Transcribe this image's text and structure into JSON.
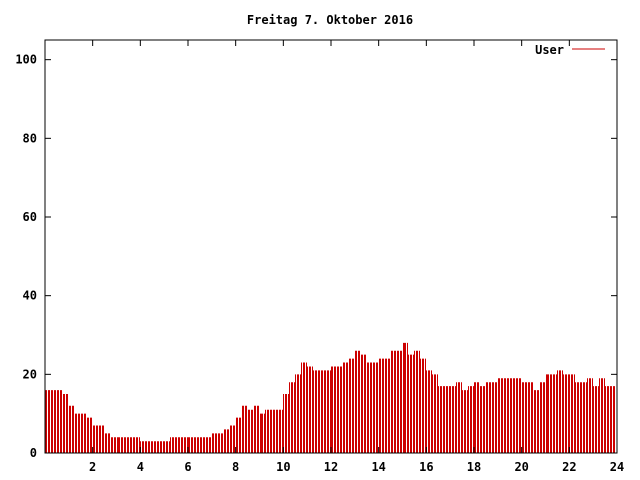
{
  "chart_data": {
    "type": "bar",
    "title": "Freitag 7. Oktober 2016",
    "xlabel": "",
    "ylabel": "",
    "xlim": [
      0,
      24
    ],
    "ylim": [
      0,
      105
    ],
    "x_ticks": [
      2,
      4,
      6,
      8,
      10,
      12,
      14,
      16,
      18,
      20,
      22,
      24
    ],
    "y_ticks": [
      0,
      20,
      40,
      60,
      80,
      100
    ],
    "grid": false,
    "legend_position": "top-right",
    "series": [
      {
        "name": "User",
        "color": "#cc0000",
        "points": [
          [
            0.0,
            16
          ],
          [
            0.25,
            16
          ],
          [
            0.5,
            16
          ],
          [
            0.75,
            15
          ],
          [
            1.0,
            12
          ],
          [
            1.25,
            10
          ],
          [
            1.5,
            10
          ],
          [
            1.75,
            9
          ],
          [
            2.0,
            7
          ],
          [
            2.25,
            7
          ],
          [
            2.5,
            5
          ],
          [
            2.75,
            4
          ],
          [
            3.0,
            4
          ],
          [
            3.25,
            4
          ],
          [
            3.5,
            4
          ],
          [
            3.75,
            4
          ],
          [
            4.0,
            3
          ],
          [
            4.25,
            3
          ],
          [
            4.5,
            3
          ],
          [
            4.75,
            3
          ],
          [
            5.0,
            3
          ],
          [
            5.25,
            4
          ],
          [
            5.5,
            4
          ],
          [
            5.75,
            4
          ],
          [
            6.0,
            4
          ],
          [
            6.25,
            4
          ],
          [
            6.5,
            4
          ],
          [
            6.75,
            4
          ],
          [
            7.0,
            5
          ],
          [
            7.25,
            5
          ],
          [
            7.5,
            6
          ],
          [
            7.75,
            7
          ],
          [
            8.0,
            9
          ],
          [
            8.25,
            12
          ],
          [
            8.5,
            11
          ],
          [
            8.75,
            12
          ],
          [
            9.0,
            10
          ],
          [
            9.25,
            11
          ],
          [
            9.5,
            11
          ],
          [
            9.75,
            11
          ],
          [
            10.0,
            15
          ],
          [
            10.25,
            18
          ],
          [
            10.5,
            20
          ],
          [
            10.75,
            23
          ],
          [
            11.0,
            22
          ],
          [
            11.25,
            21
          ],
          [
            11.5,
            21
          ],
          [
            11.75,
            21
          ],
          [
            12.0,
            22
          ],
          [
            12.25,
            22
          ],
          [
            12.5,
            23
          ],
          [
            12.75,
            24
          ],
          [
            13.0,
            26
          ],
          [
            13.25,
            25
          ],
          [
            13.5,
            23
          ],
          [
            13.75,
            23
          ],
          [
            14.0,
            24
          ],
          [
            14.25,
            24
          ],
          [
            14.5,
            26
          ],
          [
            14.75,
            26
          ],
          [
            15.0,
            28
          ],
          [
            15.25,
            25
          ],
          [
            15.5,
            26
          ],
          [
            15.75,
            24
          ],
          [
            16.0,
            21
          ],
          [
            16.25,
            20
          ],
          [
            16.5,
            17
          ],
          [
            16.75,
            17
          ],
          [
            17.0,
            17
          ],
          [
            17.25,
            18
          ],
          [
            17.5,
            16
          ],
          [
            17.75,
            17
          ],
          [
            18.0,
            18
          ],
          [
            18.25,
            17
          ],
          [
            18.5,
            18
          ],
          [
            18.75,
            18
          ],
          [
            19.0,
            19
          ],
          [
            19.25,
            19
          ],
          [
            19.5,
            19
          ],
          [
            19.75,
            19
          ],
          [
            20.0,
            18
          ],
          [
            20.25,
            18
          ],
          [
            20.5,
            16
          ],
          [
            20.75,
            18
          ],
          [
            21.0,
            20
          ],
          [
            21.25,
            20
          ],
          [
            21.5,
            21
          ],
          [
            21.75,
            20
          ],
          [
            22.0,
            20
          ],
          [
            22.25,
            18
          ],
          [
            22.5,
            18
          ],
          [
            22.75,
            19
          ],
          [
            23.0,
            17
          ],
          [
            23.25,
            19
          ],
          [
            23.5,
            17
          ],
          [
            23.75,
            17
          ]
        ]
      }
    ]
  }
}
